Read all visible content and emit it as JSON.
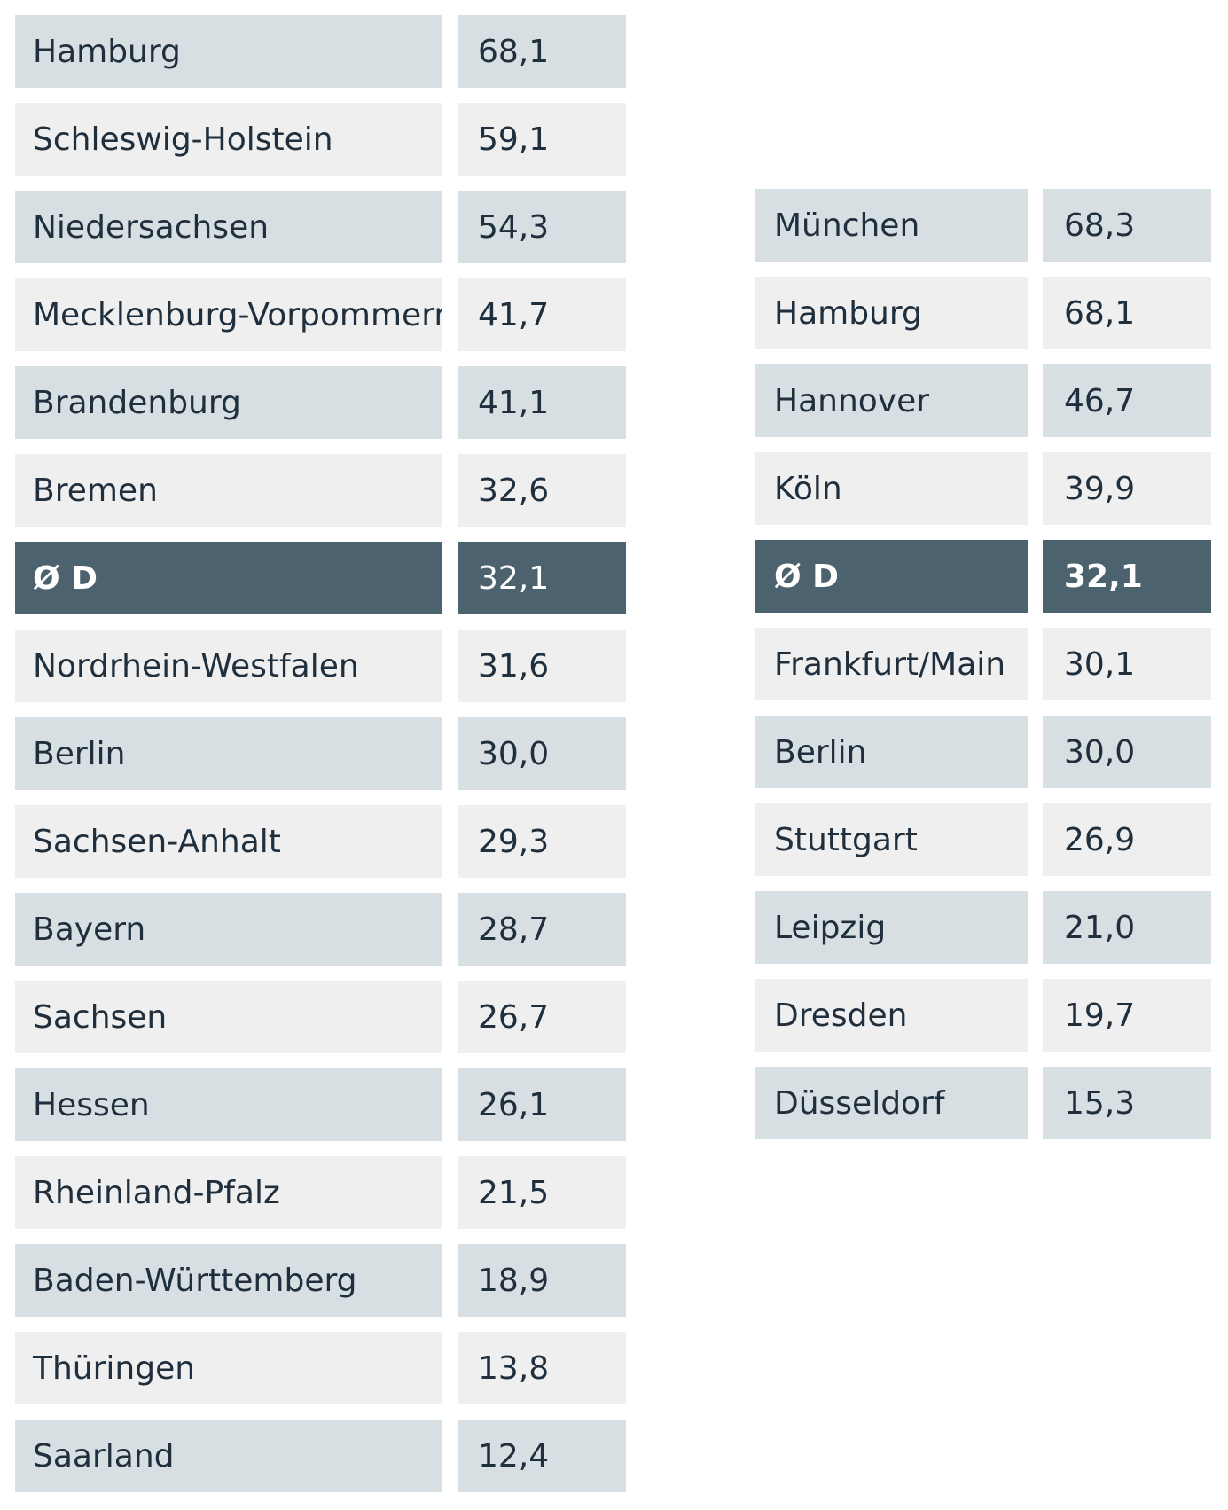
{
  "chart_data": [
    {
      "type": "table",
      "rows": [
        {
          "name": "Hamburg",
          "value": "68,1"
        },
        {
          "name": "Schleswig-Holstein",
          "value": "59,1"
        },
        {
          "name": "Niedersachsen",
          "value": "54,3"
        },
        {
          "name": "Mecklenburg-Vorpommern",
          "value": "41,7"
        },
        {
          "name": "Brandenburg",
          "value": "41,1"
        },
        {
          "name": "Bremen",
          "value": "32,6"
        },
        {
          "name": "Ø D",
          "value": "32,1",
          "highlight": true
        },
        {
          "name": "Nordrhein-Westfalen",
          "value": "31,6"
        },
        {
          "name": "Berlin",
          "value": "30,0"
        },
        {
          "name": "Sachsen-Anhalt",
          "value": "29,3"
        },
        {
          "name": "Bayern",
          "value": "28,7"
        },
        {
          "name": "Sachsen",
          "value": "26,7"
        },
        {
          "name": "Hessen",
          "value": "26,1"
        },
        {
          "name": "Rheinland-Pfalz",
          "value": "21,5"
        },
        {
          "name": "Baden-Württemberg",
          "value": "18,9"
        },
        {
          "name": "Thüringen",
          "value": "13,8"
        },
        {
          "name": "Saarland",
          "value": "12,4"
        }
      ]
    },
    {
      "type": "table",
      "rows": [
        {
          "name": "München",
          "value": "68,3"
        },
        {
          "name": "Hamburg",
          "value": "68,1"
        },
        {
          "name": "Hannover",
          "value": "46,7"
        },
        {
          "name": "Köln",
          "value": "39,9"
        },
        {
          "name": "Ø D",
          "value": "32,1",
          "highlight": true
        },
        {
          "name": "Frankfurt/Main",
          "value": "30,1"
        },
        {
          "name": "Berlin",
          "value": "30,0"
        },
        {
          "name": "Stuttgart",
          "value": "26,9"
        },
        {
          "name": "Leipzig",
          "value": "21,0"
        },
        {
          "name": "Dresden",
          "value": "19,7"
        },
        {
          "name": "Düsseldorf",
          "value": "15,3"
        }
      ]
    }
  ],
  "colors": {
    "row_odd": "#d8dfe3",
    "row_even": "#efefef",
    "row_average": "#4c626e",
    "text": "#1f2f3d",
    "text_average": "#ffffff"
  }
}
